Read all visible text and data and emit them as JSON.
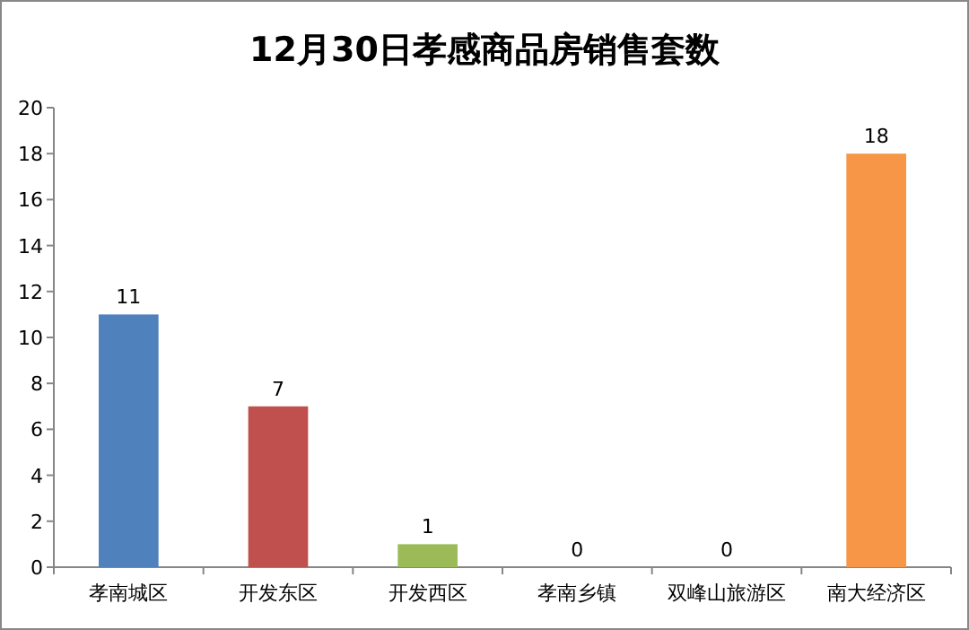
{
  "chart_data": {
    "type": "bar",
    "title": "12月30日孝感商品房销售套数",
    "categories": [
      "孝南城区",
      "开发东区",
      "开发西区",
      "孝南乡镇",
      "双峰山旅游区",
      "南大经济区"
    ],
    "values": [
      11,
      7,
      1,
      0,
      0,
      18
    ],
    "colors": [
      "#4f81bd",
      "#c0504d",
      "#9bbb59",
      "#8064a2",
      "#4bacc6",
      "#f79646"
    ],
    "ylim": [
      0,
      20
    ],
    "yticks": [
      0,
      2,
      4,
      6,
      8,
      10,
      12,
      14,
      16,
      18,
      20
    ],
    "data_labels": true
  }
}
